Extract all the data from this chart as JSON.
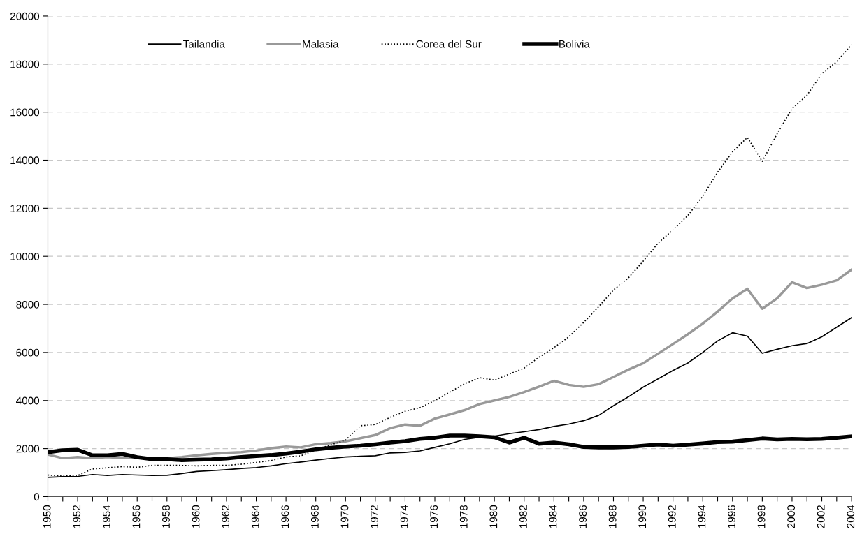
{
  "chart_data": {
    "type": "line",
    "x": [
      1950,
      1951,
      1952,
      1953,
      1954,
      1955,
      1956,
      1957,
      1958,
      1959,
      1960,
      1961,
      1962,
      1963,
      1964,
      1965,
      1966,
      1967,
      1968,
      1969,
      1970,
      1971,
      1972,
      1973,
      1974,
      1975,
      1976,
      1977,
      1978,
      1979,
      1980,
      1981,
      1982,
      1983,
      1984,
      1985,
      1986,
      1987,
      1988,
      1989,
      1990,
      1991,
      1992,
      1993,
      1994,
      1995,
      1996,
      1997,
      1998,
      1999,
      2000,
      2001,
      2002,
      2003,
      2004
    ],
    "series": [
      {
        "name": "Tailandia",
        "color": "#000000",
        "line_style": "solid",
        "values": [
          800,
          830,
          840,
          920,
          880,
          920,
          900,
          880,
          890,
          960,
          1050,
          1080,
          1120,
          1170,
          1210,
          1280,
          1370,
          1440,
          1520,
          1590,
          1650,
          1680,
          1700,
          1820,
          1840,
          1900,
          2050,
          2200,
          2380,
          2470,
          2520,
          2620,
          2700,
          2790,
          2920,
          3020,
          3160,
          3380,
          3780,
          4150,
          4560,
          4900,
          5250,
          5560,
          6000,
          6480,
          6820,
          6680,
          5970,
          6130,
          6280,
          6370,
          6650,
          7050,
          7450
        ]
      },
      {
        "name": "Malasia",
        "color": "#999999",
        "line_style": "solid",
        "values": [
          1750,
          1600,
          1650,
          1600,
          1650,
          1600,
          1620,
          1600,
          1600,
          1650,
          1720,
          1780,
          1820,
          1850,
          1920,
          2020,
          2080,
          2050,
          2180,
          2230,
          2300,
          2430,
          2560,
          2850,
          3000,
          2950,
          3250,
          3420,
          3600,
          3850,
          4000,
          4150,
          4350,
          4580,
          4820,
          4650,
          4570,
          4680,
          4980,
          5280,
          5550,
          5950,
          6350,
          6760,
          7200,
          7700,
          8250,
          8650,
          7820,
          8250,
          8920,
          8680,
          8820,
          9000,
          9450
        ]
      },
      {
        "name": "Corea del Sur",
        "color": "#000000",
        "line_style": "dotted",
        "values": [
          900,
          850,
          880,
          1150,
          1200,
          1250,
          1220,
          1300,
          1300,
          1300,
          1280,
          1300,
          1300,
          1350,
          1420,
          1500,
          1650,
          1700,
          1950,
          2150,
          2350,
          2950,
          3000,
          3300,
          3550,
          3700,
          4000,
          4350,
          4700,
          4950,
          4850,
          5100,
          5350,
          5800,
          6200,
          6650,
          7250,
          7900,
          8600,
          9100,
          9800,
          10550,
          11100,
          11700,
          12500,
          13500,
          14350,
          14950,
          13950,
          15100,
          16150,
          16700,
          17600,
          18100,
          18800
        ]
      },
      {
        "name": "Bolivia",
        "color": "#000000",
        "line_style": "solid",
        "values": [
          1850,
          1930,
          1950,
          1720,
          1720,
          1780,
          1640,
          1560,
          1560,
          1520,
          1540,
          1550,
          1590,
          1650,
          1690,
          1730,
          1790,
          1870,
          1970,
          2030,
          2080,
          2120,
          2180,
          2250,
          2310,
          2400,
          2450,
          2540,
          2540,
          2510,
          2470,
          2250,
          2450,
          2200,
          2250,
          2180,
          2070,
          2050,
          2050,
          2070,
          2120,
          2170,
          2120,
          2160,
          2210,
          2270,
          2290,
          2350,
          2420,
          2380,
          2400,
          2390,
          2400,
          2450,
          2510
        ]
      }
    ],
    "xlim": [
      1950,
      2004
    ],
    "xticks": [
      1950,
      {
        "value": 1951,
        "label": null
      },
      1952,
      {
        "value": 1953,
        "label": null
      },
      1954,
      {
        "value": 1955,
        "label": null
      },
      1956,
      {
        "value": 1957,
        "label": null
      },
      1958,
      {
        "value": 1959,
        "label": null
      },
      1960,
      {
        "value": 1961,
        "label": null
      },
      1962,
      {
        "value": 1963,
        "label": null
      },
      1964,
      {
        "value": 1965,
        "label": null
      },
      1966,
      {
        "value": 1967,
        "label": null
      },
      1968,
      {
        "value": 1969,
        "label": null
      },
      1970,
      {
        "value": 1971,
        "label": null
      },
      1972,
      {
        "value": 1973,
        "label": null
      },
      1974,
      {
        "value": 1975,
        "label": null
      },
      1976,
      {
        "value": 1977,
        "label": null
      },
      1978,
      {
        "value": 1979,
        "label": null
      },
      1980,
      {
        "value": 1981,
        "label": null
      },
      1982,
      {
        "value": 1983,
        "label": null
      },
      1984,
      {
        "value": 1985,
        "label": null
      },
      1986,
      {
        "value": 1987,
        "label": null
      },
      1988,
      {
        "value": 1989,
        "label": null
      },
      1990,
      {
        "value": 1991,
        "label": null
      },
      1992,
      {
        "value": 1993,
        "label": null
      },
      1994,
      {
        "value": 1995,
        "label": null
      },
      1996,
      {
        "value": 1997,
        "label": null
      },
      1998,
      {
        "value": 1999,
        "label": null
      },
      2000,
      {
        "value": 2001,
        "label": null
      },
      2002,
      {
        "value": 2003,
        "label": null
      },
      2004
    ],
    "ylim": [
      0,
      20000
    ],
    "yticks": [
      0,
      2000,
      4000,
      6000,
      8000,
      10000,
      12000,
      14000,
      16000,
      18000,
      20000
    ],
    "grid": "y",
    "legend": "top",
    "marker": "none"
  }
}
